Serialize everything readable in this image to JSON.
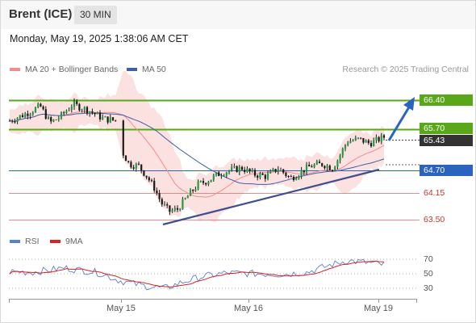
{
  "header": {
    "title": "Brent (ICE)",
    "interval": "30 MIN"
  },
  "timestamp": "Monday, May 19, 2025 1:38:06 AM CET",
  "legend": {
    "ma20_bollinger": "MA 20 + Bollinger Bands",
    "ma50": "MA 50",
    "copyright": "Research © 2025 Trading Central"
  },
  "rsi_legend": {
    "rsi": "RSI",
    "ma9": "9MA"
  },
  "levels": {
    "resistance_2": "66.40",
    "resistance_1": "65.70",
    "last_price": "65.43",
    "pivot": "64.70",
    "support_1": "64.15",
    "support_2": "63.50"
  },
  "rsi_ticks": [
    "70",
    "50",
    "30"
  ],
  "x_labels": [
    "May 15",
    "May 16",
    "May 19"
  ],
  "colors": {
    "resistance_green": "#5aa71a",
    "pivot_blue": "#2b64c0",
    "support_red": "#e06666",
    "last_price_bg": "#333333",
    "bollinger_fill": "#fbdcdc",
    "ma20": "#f28b8b",
    "ma50": "#3d5fa8",
    "rsi": "#5b7fd1",
    "rsi_ma": "#e02020"
  },
  "chart_data": {
    "type": "candlestick",
    "y_range": [
      63.4,
      66.7
    ],
    "x_categories": [
      "May 15",
      "May 16",
      "May 19"
    ],
    "horizontal_levels": [
      66.4,
      65.7,
      64.7,
      64.15,
      63.5
    ],
    "last_price": 65.43,
    "rsi_range": [
      20,
      80
    ],
    "rsi_levels": [
      70,
      50,
      30
    ]
  }
}
